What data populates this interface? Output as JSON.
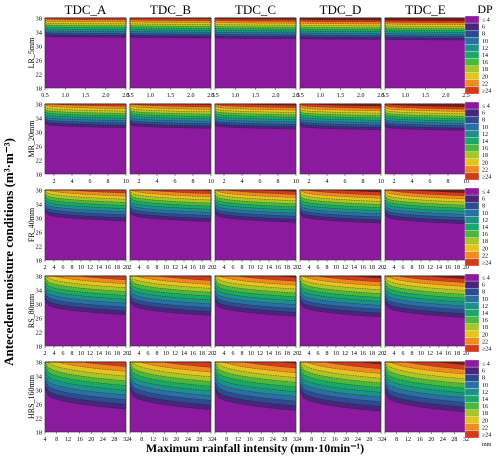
{
  "figure": {
    "ylabel": "Antecedent moisture conditions (m³·m⁻³)",
    "xlabel": "Maximum rainfall intensity (mm·10min⁻¹)",
    "legend_title": "DP",
    "legend_unit": "mm"
  },
  "chart_data": {
    "type": "heatmap",
    "columns": [
      "TDC_A",
      "TDC_B",
      "TDC_C",
      "TDC_D",
      "TDC_E"
    ],
    "rows": [
      {
        "name": "LR_5mm",
        "xticks": [
          "0.5",
          "1.0",
          "1.5",
          "2.0",
          "2.5"
        ],
        "xrange": [
          0.5,
          2.5
        ],
        "contour_intensity": 0.05,
        "legend": [
          "≤ 4",
          "6",
          "8",
          "10",
          "12",
          "14",
          "16",
          "18",
          "20",
          "22",
          "≥24"
        ]
      },
      {
        "name": "MR_20mm",
        "xticks": [
          "2",
          "4",
          "6",
          "8",
          "10"
        ],
        "xrange": [
          1,
          10
        ],
        "contour_intensity": 0.2,
        "legend": [
          "≤ 4",
          "6",
          "8",
          "10",
          "12",
          "14",
          "16",
          "18",
          "20",
          "22",
          "≥24"
        ]
      },
      {
        "name": "FR_40mm",
        "xticks": [
          "2",
          "4",
          "6",
          "8",
          "10",
          "12",
          "14",
          "16",
          "18",
          "20"
        ],
        "xrange": [
          2,
          20
        ],
        "contour_intensity": 0.45,
        "legend": [
          "≤ 4",
          "6",
          "8",
          "10",
          "12",
          "14",
          "16",
          "18",
          "20",
          "22",
          "≥24"
        ]
      },
      {
        "name": "RS_80mm",
        "xticks": [
          "2",
          "4",
          "6",
          "8",
          "10",
          "12",
          "14",
          "16",
          "18",
          "20"
        ],
        "xrange": [
          2,
          20
        ],
        "contour_intensity": 0.72,
        "legend": [
          "≤ 4",
          "6",
          "8",
          "10",
          "12",
          "14",
          "16",
          "18",
          "20",
          "22",
          "≥24"
        ]
      },
      {
        "name": "HRS_160mm",
        "xticks": [
          "4",
          "8",
          "12",
          "16",
          "20",
          "24",
          "28",
          "32"
        ],
        "xrange": [
          4,
          32
        ],
        "contour_intensity": 1.0,
        "legend": [
          "≤ 4",
          "6",
          "8",
          "10",
          "12",
          "14",
          "16",
          "18",
          "20",
          "22",
          "≥24"
        ]
      }
    ],
    "yticks": [
      "18",
      "22",
      "26",
      "30",
      "34",
      "38"
    ],
    "yrange": [
      18,
      38
    ],
    "colorbar_levels": [
      4,
      6,
      8,
      10,
      12,
      14,
      16,
      18,
      20,
      22,
      24
    ],
    "colors": [
      "#8b1a9e",
      "#48247a",
      "#2f4b8f",
      "#2a6fa3",
      "#1f8f8a",
      "#1aa866",
      "#4ab83c",
      "#a8c52a",
      "#e6c31e",
      "#ef8a22",
      "#d23b1c",
      "#7a1a14"
    ]
  }
}
